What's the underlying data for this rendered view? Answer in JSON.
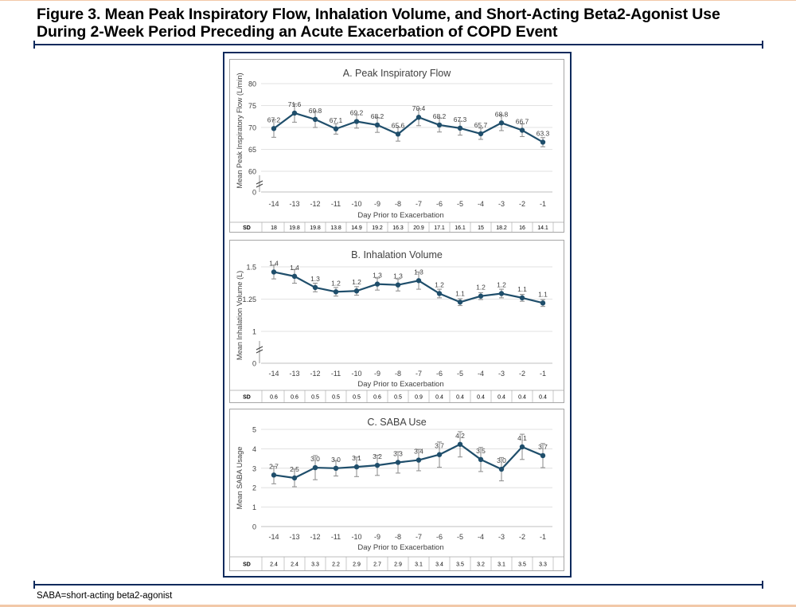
{
  "figure": {
    "title_line1": "Figure 3. Mean Peak Inspiratory Flow, Inhalation Volume, and Short-Acting Beta2-Agonist Use",
    "title_line2": "During 2-Week Period Preceding an Acute Exacerbation of COPD Event",
    "footnote": "SABA=short-acting beta2-agonist"
  },
  "colors": {
    "series": "#1f4e6b",
    "error_bar": "#8a8a8a",
    "frame": "#0e2a5c",
    "panel_border": "#a6a6a6",
    "grid": "#d9d9d9",
    "text": "#404040"
  },
  "chart_data": [
    {
      "type": "line",
      "title": "A. Peak Inspiratory Flow",
      "xlabel": "Day Prior to Exacerbation",
      "ylabel": "Mean Peak Inspiratory Flow (L/min)",
      "x": [
        -14,
        -13,
        -12,
        -11,
        -10,
        -9,
        -8,
        -7,
        -6,
        -5,
        -4,
        -3,
        -2,
        -1
      ],
      "values": [
        67.2,
        71.6,
        69.8,
        67.1,
        69.2,
        68.2,
        65.6,
        70.4,
        68.2,
        67.3,
        65.7,
        68.8,
        66.7,
        63.3
      ],
      "labels": [
        "67.2",
        "71.6",
        "69.8",
        "67.1",
        "69.2",
        "68.2",
        "65.6",
        "70.4",
        "68.2",
        "67.3",
        "65.7",
        "68.8",
        "66.7",
        "63.3"
      ],
      "error_half_width": [
        2.5,
        2.6,
        2.3,
        1.5,
        1.9,
        2.1,
        2.0,
        2.4,
        2.0,
        2.0,
        1.6,
        2.2,
        1.8,
        1.3
      ],
      "yticks": [
        "80",
        "75",
        "70",
        "65",
        "60",
        "0"
      ],
      "ylim": [
        55,
        80
      ],
      "axis_break": true,
      "grid": true,
      "sd_label": "SD",
      "sd": [
        "18",
        "19.8",
        "19.8",
        "13.8",
        "14.9",
        "19.2",
        "16.3",
        "20.9",
        "17.1",
        "16.1",
        "15",
        "18.2",
        "16",
        "14.1"
      ]
    },
    {
      "type": "line",
      "title": "B. Inhalation Volume",
      "xlabel": "Day Prior to Exacerbation",
      "ylabel": "Mean Inhalation Volume (L)",
      "x": [
        -14,
        -13,
        -12,
        -11,
        -10,
        -9,
        -8,
        -7,
        -6,
        -5,
        -4,
        -3,
        -2,
        -1
      ],
      "values": [
        1.44,
        1.39,
        1.26,
        1.21,
        1.22,
        1.3,
        1.29,
        1.34,
        1.19,
        1.09,
        1.16,
        1.19,
        1.14,
        1.08
      ],
      "labels": [
        "1.4",
        "1.4",
        "1.3",
        "1.2",
        "1.2",
        "1.3",
        "1.3",
        "1.3",
        "1.2",
        "1.1",
        "1.2",
        "1.2",
        "1.1",
        "1.1"
      ],
      "error_half_width": [
        0.08,
        0.08,
        0.05,
        0.05,
        0.05,
        0.07,
        0.07,
        0.1,
        0.05,
        0.04,
        0.04,
        0.05,
        0.04,
        0.04
      ],
      "yticks": [
        "1.5",
        "1.25",
        "1",
        "0"
      ],
      "ylim": [
        0.75,
        1.5
      ],
      "axis_break": true,
      "grid": true,
      "sd_label": "SD",
      "sd": [
        "0.6",
        "0.6",
        "0.5",
        "0.5",
        "0.5",
        "0.6",
        "0.5",
        "0.9",
        "0.4",
        "0.4",
        "0.4",
        "0.4",
        "0.4",
        "0.4"
      ]
    },
    {
      "type": "line",
      "title": "C. SABA Use",
      "xlabel": "Day Prior to Exacerbation",
      "ylabel": "Mean SABA Usage",
      "x": [
        -14,
        -13,
        -12,
        -11,
        -10,
        -9,
        -8,
        -7,
        -6,
        -5,
        -4,
        -3,
        -2,
        -1
      ],
      "values": [
        2.65,
        2.5,
        3.03,
        3.0,
        3.07,
        3.15,
        3.3,
        3.42,
        3.7,
        4.23,
        3.45,
        2.95,
        4.1,
        3.65
      ],
      "labels": [
        "2.7",
        "2.5",
        "3.0",
        "3.0",
        "3.1",
        "3.2",
        "3.3",
        "3.4",
        "3.7",
        "4.2",
        "3.5",
        "3.0",
        "4.1",
        "3.7"
      ],
      "error_half_width": [
        0.45,
        0.45,
        0.62,
        0.4,
        0.5,
        0.52,
        0.55,
        0.55,
        0.65,
        0.65,
        0.62,
        0.6,
        0.65,
        0.62
      ],
      "yticks": [
        "5",
        "4",
        "3",
        "2",
        "1",
        "0"
      ],
      "ylim": [
        0,
        5
      ],
      "axis_break": false,
      "grid": true,
      "sd_label": "SD",
      "sd": [
        "2.4",
        "2.4",
        "3.3",
        "2.2",
        "2.9",
        "2.7",
        "2.9",
        "3.1",
        "3.4",
        "3.5",
        "3.2",
        "3.1",
        "3.5",
        "3.3"
      ]
    }
  ]
}
